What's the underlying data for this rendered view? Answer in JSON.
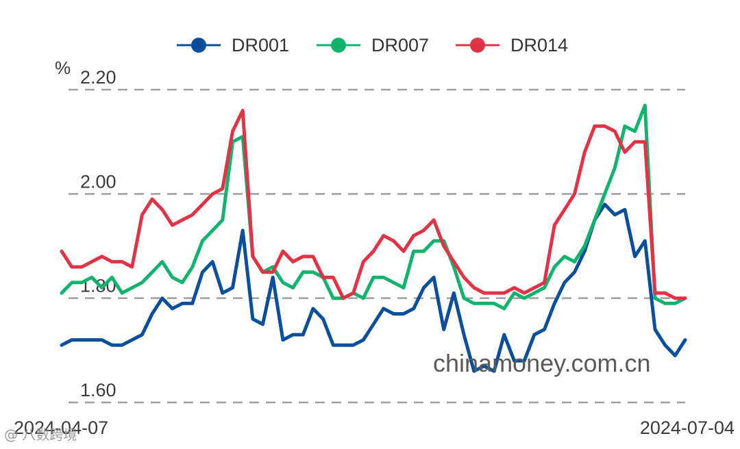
{
  "chart_data": {
    "type": "line",
    "unit": "%",
    "ylim": [
      1.6,
      2.2
    ],
    "y_ticks": [
      "2.20",
      "2.00",
      "1.80",
      "1.60"
    ],
    "x_tick_labels": [
      "2024-04-07",
      "2024-07-04"
    ],
    "grid": "horizontal dashed",
    "legend_position": "top",
    "series": [
      {
        "name": "DR001",
        "color": "#0a4f9c",
        "values": [
          1.71,
          1.72,
          1.72,
          1.72,
          1.72,
          1.71,
          1.71,
          1.72,
          1.73,
          1.77,
          1.8,
          1.78,
          1.79,
          1.79,
          1.85,
          1.87,
          1.81,
          1.82,
          1.93,
          1.76,
          1.75,
          1.84,
          1.72,
          1.73,
          1.73,
          1.78,
          1.76,
          1.71,
          1.71,
          1.71,
          1.72,
          1.75,
          1.78,
          1.77,
          1.77,
          1.78,
          1.82,
          1.84,
          1.74,
          1.81,
          1.73,
          1.66,
          1.67,
          1.66,
          1.73,
          1.68,
          1.68,
          1.73,
          1.74,
          1.79,
          1.83,
          1.85,
          1.89,
          1.95,
          1.98,
          1.96,
          1.97,
          1.88,
          1.91,
          1.74,
          1.71,
          1.69,
          1.72
        ]
      },
      {
        "name": "DR007",
        "color": "#12b36e",
        "values": [
          1.81,
          1.83,
          1.83,
          1.84,
          1.82,
          1.84,
          1.81,
          1.82,
          1.83,
          1.85,
          1.87,
          1.84,
          1.83,
          1.86,
          1.91,
          1.93,
          1.95,
          2.1,
          2.11,
          1.88,
          1.85,
          1.86,
          1.83,
          1.82,
          1.85,
          1.85,
          1.84,
          1.8,
          1.8,
          1.81,
          1.8,
          1.84,
          1.84,
          1.83,
          1.82,
          1.89,
          1.89,
          1.91,
          1.91,
          1.86,
          1.8,
          1.79,
          1.79,
          1.79,
          1.78,
          1.81,
          1.8,
          1.81,
          1.82,
          1.86,
          1.88,
          1.87,
          1.9,
          1.95,
          2.0,
          2.05,
          2.13,
          2.12,
          2.17,
          1.8,
          1.79,
          1.79,
          1.8
        ]
      },
      {
        "name": "DR014",
        "color": "#e23346",
        "values": [
          1.89,
          1.86,
          1.86,
          1.87,
          1.88,
          1.87,
          1.87,
          1.86,
          1.96,
          1.99,
          1.97,
          1.94,
          1.95,
          1.96,
          1.98,
          2.0,
          2.01,
          2.12,
          2.16,
          1.88,
          1.85,
          1.85,
          1.89,
          1.87,
          1.88,
          1.88,
          1.84,
          1.84,
          1.8,
          1.81,
          1.87,
          1.89,
          1.92,
          1.91,
          1.89,
          1.92,
          1.93,
          1.95,
          1.9,
          1.87,
          1.84,
          1.82,
          1.81,
          1.81,
          1.81,
          1.82,
          1.81,
          1.82,
          1.83,
          1.94,
          1.97,
          2.0,
          2.08,
          2.13,
          2.13,
          2.12,
          2.08,
          2.1,
          2.1,
          1.81,
          1.81,
          1.8,
          1.8
        ]
      }
    ]
  },
  "watermark": {
    "site": "chinamoney.com.cn",
    "overlay": "@ 八数跨境"
  }
}
